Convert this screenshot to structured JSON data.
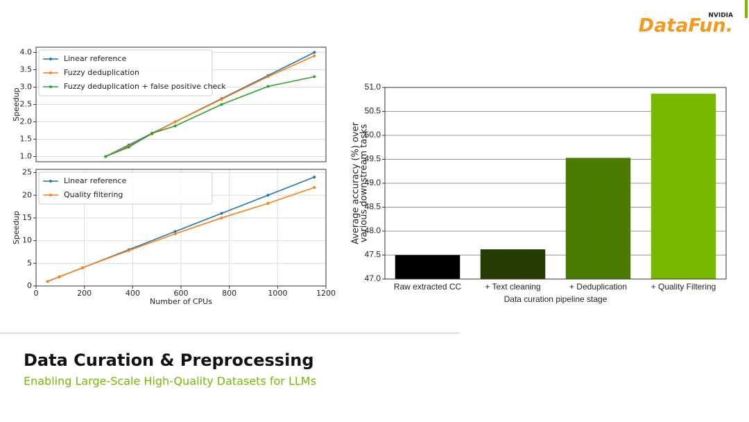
{
  "slide": {
    "title": "Data Curation & Preprocessing",
    "subtitle": "Enabling Large-Scale High-Quality Datasets for LLMs",
    "logo": "DataFun.",
    "logo_brand": "NVIDIA"
  },
  "chart_data": [
    {
      "type": "line",
      "ylabel": "Speedup",
      "grid": true,
      "legend": "upper left",
      "x": [
        288,
        384,
        480,
        576,
        768,
        960,
        1152
      ],
      "xlim": [
        0,
        1200
      ],
      "ylim": [
        0.85,
        4.15
      ],
      "yticks": [
        {
          "value": 1,
          "label": "1.0"
        },
        {
          "value": 1.5,
          "label": "1.5"
        },
        {
          "value": 2,
          "label": "2.0"
        },
        {
          "value": 2.5,
          "label": "2.5"
        },
        {
          "value": 3,
          "label": "3.0"
        },
        {
          "value": 3.5,
          "label": "3.5"
        },
        {
          "value": 4,
          "label": "4.0"
        }
      ],
      "series": [
        {
          "name": "Linear reference",
          "color": "#1f77b4",
          "values": [
            1,
            1.333,
            1.667,
            2,
            2.667,
            3.333,
            4
          ]
        },
        {
          "name": "Fuzzy deduplication",
          "color": "#ff7f0e",
          "values": [
            1,
            1.3,
            1.65,
            2.0,
            2.65,
            3.3,
            3.9
          ]
        },
        {
          "name": "Fuzzy deduplication + false positive check",
          "color": "#2ca02c",
          "values": [
            1,
            1.27,
            1.67,
            1.88,
            2.5,
            3.02,
            3.3
          ]
        }
      ]
    },
    {
      "type": "line",
      "ylabel": "Speedup",
      "xlabel": "Number of CPUs",
      "grid": true,
      "legend": "upper left",
      "x": [
        48,
        96,
        192,
        384,
        576,
        768,
        960,
        1152
      ],
      "xlim": [
        0,
        1200
      ],
      "xticks": [
        0,
        200,
        400,
        600,
        800,
        1000,
        1200
      ],
      "ylim": [
        0,
        25.7
      ],
      "yticks": [
        0,
        5,
        10,
        15,
        20,
        25
      ],
      "series": [
        {
          "name": "Linear reference",
          "color": "#1f77b4",
          "values": [
            1,
            2,
            4,
            8,
            12,
            16,
            20,
            24
          ]
        },
        {
          "name": "Quality filtering",
          "color": "#ff7f0e",
          "values": [
            1,
            2,
            4,
            7.8,
            11.5,
            15,
            18.2,
            21.7
          ]
        }
      ]
    },
    {
      "type": "bar",
      "xlabel": "Data curation pipeline stage",
      "ylabel": [
        "Average accuracy (%) over",
        "various downstream tasks"
      ],
      "grid": true,
      "categories": [
        "Raw extracted CC",
        "+ Text cleaning",
        "+ Deduplication",
        "+ Quality Filtering"
      ],
      "values": [
        47.5,
        47.62,
        49.53,
        50.87
      ],
      "colors": [
        "#000000",
        "#253d00",
        "#4b7a00",
        "#76b900"
      ],
      "ylim": [
        47,
        51
      ],
      "yticks": [
        {
          "value": 47,
          "label": "47.0"
        },
        {
          "value": 47.5,
          "label": "47.5"
        },
        {
          "value": 48,
          "label": "48.0"
        },
        {
          "value": 48.5,
          "label": "48.5"
        },
        {
          "value": 49,
          "label": "49.0"
        },
        {
          "value": 49.5,
          "label": "49.5"
        },
        {
          "value": 50,
          "label": "50.0"
        },
        {
          "value": 50.5,
          "label": "50.5"
        },
        {
          "value": 51,
          "label": "51.0"
        }
      ]
    }
  ]
}
